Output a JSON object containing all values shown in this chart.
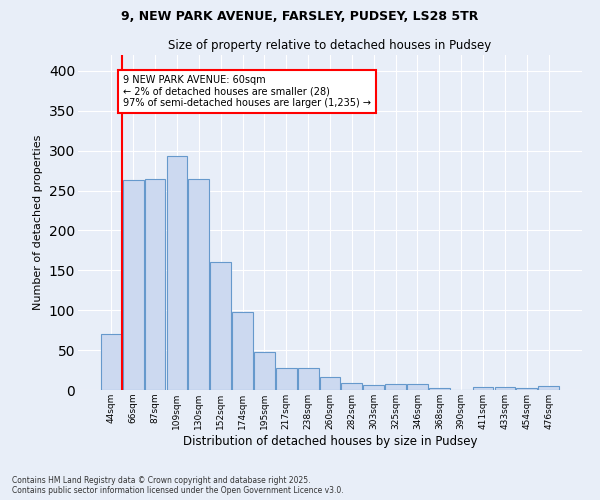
{
  "title_line1": "9, NEW PARK AVENUE, FARSLEY, PUDSEY, LS28 5TR",
  "title_line2": "Size of property relative to detached houses in Pudsey",
  "xlabel": "Distribution of detached houses by size in Pudsey",
  "ylabel": "Number of detached properties",
  "bins": [
    "44sqm",
    "66sqm",
    "87sqm",
    "109sqm",
    "130sqm",
    "152sqm",
    "174sqm",
    "195sqm",
    "217sqm",
    "238sqm",
    "260sqm",
    "282sqm",
    "303sqm",
    "325sqm",
    "346sqm",
    "368sqm",
    "390sqm",
    "411sqm",
    "433sqm",
    "454sqm",
    "476sqm"
  ],
  "values": [
    70,
    263,
    265,
    293,
    265,
    160,
    98,
    48,
    28,
    28,
    16,
    9,
    6,
    8,
    8,
    2,
    0,
    4,
    4,
    3,
    5
  ],
  "bar_facecolor": "#ccd9f0",
  "bar_edgecolor": "#6699cc",
  "background_color": "#e8eef8",
  "grid_color": "#ffffff",
  "annotation_text": "9 NEW PARK AVENUE: 60sqm\n← 2% of detached houses are smaller (28)\n97% of semi-detached houses are larger (1,235) →",
  "annotation_box_color": "white",
  "annotation_box_edgecolor": "red",
  "marker_line_color": "red",
  "ylim": [
    0,
    420
  ],
  "yticks": [
    0,
    50,
    100,
    150,
    200,
    250,
    300,
    350,
    400
  ],
  "footer_line1": "Contains HM Land Registry data © Crown copyright and database right 2025.",
  "footer_line2": "Contains public sector information licensed under the Open Government Licence v3.0."
}
